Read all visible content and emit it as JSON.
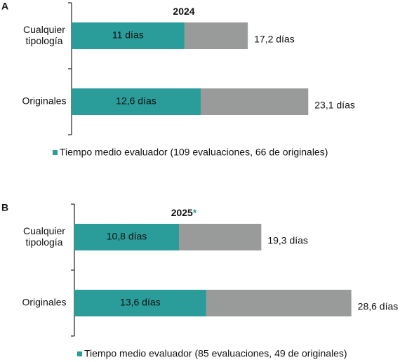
{
  "chart_data": [
    {
      "type": "bar",
      "orientation": "horizontal",
      "panel": "A",
      "title": "2024",
      "categories": [
        "Cualquier tipología",
        "Originales"
      ],
      "series": [
        {
          "color": "#999b9b",
          "values": [
            17.2,
            23.1
          ],
          "value_labels": [
            "17,2 días",
            "23,1 días"
          ]
        },
        {
          "name": "Tiempo medio evaluador (109 evaluaciones, 66 de originales)",
          "color": "#2a9d9a",
          "values": [
            11,
            12.6
          ],
          "value_labels": [
            "11 días",
            "12,6 días"
          ]
        }
      ]
    },
    {
      "type": "bar",
      "orientation": "horizontal",
      "panel": "B",
      "title": "2025",
      "title_note": "*",
      "title_note_color": "#2a9d9a",
      "categories": [
        "Cualquier tipología",
        "Originales"
      ],
      "series": [
        {
          "color": "#999b9b",
          "values": [
            19.3,
            28.6
          ],
          "value_labels": [
            "19,3 días",
            "28,6 días"
          ]
        },
        {
          "name": "Tiempo medio evaluador (85 evaluaciones, 49 de originales)",
          "color": "#2a9d9a",
          "values": [
            10.8,
            13.6
          ],
          "value_labels": [
            "10,8 días",
            "13,6 días"
          ]
        }
      ]
    }
  ]
}
